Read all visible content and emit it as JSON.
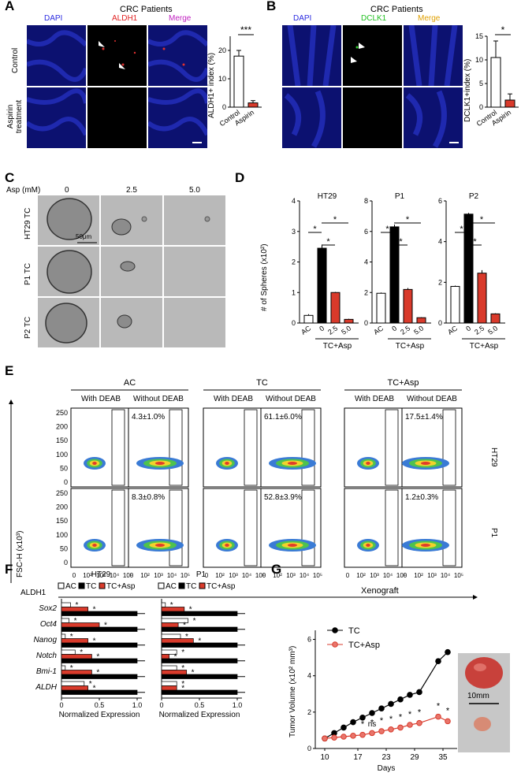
{
  "panelA": {
    "letter": "A",
    "title": "CRC Patients",
    "channels": [
      "DAPI",
      "ALDH1",
      "Merge"
    ],
    "channel_colors": [
      "#2a2ae0",
      "#e02020",
      "#c020c0"
    ],
    "rows": [
      "Control",
      "Aspirin treatment"
    ],
    "chart_data": {
      "type": "bar",
      "categories": [
        "Control",
        "Aspirin"
      ],
      "values": [
        18,
        1.5
      ],
      "errors": [
        2,
        0.8
      ],
      "ylabel": "ALDH1+ index (%)",
      "ylim": [
        0,
        25
      ],
      "yticks": [
        "0",
        "10",
        "20"
      ],
      "sig": "***"
    }
  },
  "panelB": {
    "letter": "B",
    "title": "CRC Patients",
    "channels": [
      "DAPI",
      "DCLK1",
      "Merge"
    ],
    "channel_colors": [
      "#2a2ae0",
      "#20c020",
      "#e0a000"
    ],
    "chart_data": {
      "type": "bar",
      "categories": [
        "Control",
        "Aspirin"
      ],
      "values": [
        10.5,
        1.5
      ],
      "errors": [
        3.5,
        1.3
      ],
      "ylabel": "DCLK1+index (%)",
      "ylim": [
        0,
        15
      ],
      "yticks": [
        "0",
        "5",
        "10",
        "15"
      ],
      "sig": "*"
    }
  },
  "panelC": {
    "letter": "C",
    "asp_label": "Asp (mM)",
    "doses": [
      "0",
      "2.5",
      "5.0"
    ],
    "rows": [
      "HT29 TC",
      "P1 TC",
      "P2 TC"
    ],
    "scale": "50μm"
  },
  "panelD": {
    "letter": "D",
    "ylabel": "# of Spheres (x10²)",
    "group_label": "TC+Asp",
    "categories": [
      "AC",
      "0",
      "2.5",
      "5.0"
    ],
    "chart_data": [
      {
        "type": "bar",
        "title": "HT29",
        "values": [
          0.25,
          2.45,
          1.0,
          0.12
        ],
        "errors": [
          0.04,
          0.12,
          0.02,
          0.02
        ],
        "ylim": [
          0,
          4
        ],
        "yticks": [
          "0",
          "1",
          "2",
          "3",
          "4"
        ]
      },
      {
        "type": "bar",
        "title": "P1",
        "values": [
          1.95,
          6.3,
          2.2,
          0.35
        ],
        "errors": [
          0.05,
          0.15,
          0.1,
          0.03
        ],
        "ylim": [
          0,
          8
        ],
        "yticks": [
          "0",
          "2",
          "4",
          "6",
          "8"
        ]
      },
      {
        "type": "bar",
        "title": "P2",
        "values": [
          1.8,
          5.35,
          2.45,
          0.45
        ],
        "errors": [
          0.04,
          0.06,
          0.15,
          0.03
        ],
        "ylim": [
          0,
          6
        ],
        "yticks": [
          "0",
          "2",
          "4",
          "6"
        ]
      }
    ]
  },
  "panelE": {
    "letter": "E",
    "groups": [
      "AC",
      "TC",
      "TC+Asp"
    ],
    "subgroups": [
      "With DEAB",
      "Without DEAB"
    ],
    "rows": [
      "HT29",
      "P1"
    ],
    "percent_HT29": [
      "4.3±1.0%",
      "61.1±6.0%",
      "17.5±1.4%"
    ],
    "percent_P1": [
      "8.3±0.8%",
      "52.8±3.9%",
      "1.2±0.3%"
    ],
    "yticks": [
      "250",
      "200",
      "150",
      "100",
      "50",
      "0"
    ],
    "xticks": [
      "0",
      "10²",
      "10³",
      "10⁴",
      "10⁵"
    ],
    "ylabel": "FSC-H (x10³)",
    "xlabel": "ALDH1"
  },
  "panelF": {
    "letter": "F",
    "genes": [
      "Sox2",
      "Oct4",
      "Nanog",
      "Notch",
      "Bmi-1",
      "ALDH"
    ],
    "legend": [
      "AC",
      "TC",
      "TC+Asp"
    ],
    "xlabel": "Normalized Expression",
    "xticks": [
      "0",
      "0.5",
      "1.0"
    ],
    "chart_data": [
      {
        "type": "bar",
        "title": "HT29",
        "series": [
          {
            "name": "AC",
            "values": [
              0.12,
              0.1,
              0.05,
              0.18,
              0.05,
              0.3
            ]
          },
          {
            "name": "TC",
            "values": [
              1.0,
              1.0,
              1.0,
              1.0,
              1.0,
              1.0
            ]
          },
          {
            "name": "TC+Asp",
            "values": [
              0.35,
              0.5,
              0.35,
              0.4,
              0.4,
              0.35
            ]
          }
        ]
      },
      {
        "type": "bar",
        "title": "P1",
        "series": [
          {
            "name": "AC",
            "values": [
              0.05,
              0.35,
              0.25,
              0.2,
              0.2,
              0.2
            ]
          },
          {
            "name": "TC",
            "values": [
              1.0,
              1.0,
              1.0,
              1.0,
              1.0,
              1.0
            ]
          },
          {
            "name": "TC+Asp",
            "values": [
              0.3,
              0.22,
              0.42,
              0.1,
              0.33,
              0.2
            ]
          }
        ]
      }
    ]
  },
  "panelG": {
    "letter": "G",
    "title": "Xenograft",
    "ylabel": "Tumor Volume (x10² mm³)",
    "xlabel": "Days",
    "scale": "10mm",
    "ns_label": "ns",
    "chart_data": {
      "type": "line",
      "x": [
        10,
        12,
        14,
        16,
        18,
        20,
        22,
        24,
        26,
        28,
        30,
        34,
        36
      ],
      "xticks": [
        "10",
        "17",
        "23",
        "29",
        "35"
      ],
      "yticks": [
        "0",
        "2",
        "4",
        "6"
      ],
      "ylim": [
        0,
        6.5
      ],
      "series": [
        {
          "name": "TC",
          "values": [
            0.55,
            0.85,
            1.15,
            1.45,
            1.7,
            1.95,
            2.2,
            2.45,
            2.7,
            2.95,
            3.1,
            4.8,
            5.3
          ]
        },
        {
          "name": "TC+Asp",
          "values": [
            0.55,
            0.6,
            0.65,
            0.7,
            0.75,
            0.85,
            0.95,
            1.05,
            1.15,
            1.3,
            1.4,
            1.75,
            1.5
          ]
        }
      ]
    }
  }
}
